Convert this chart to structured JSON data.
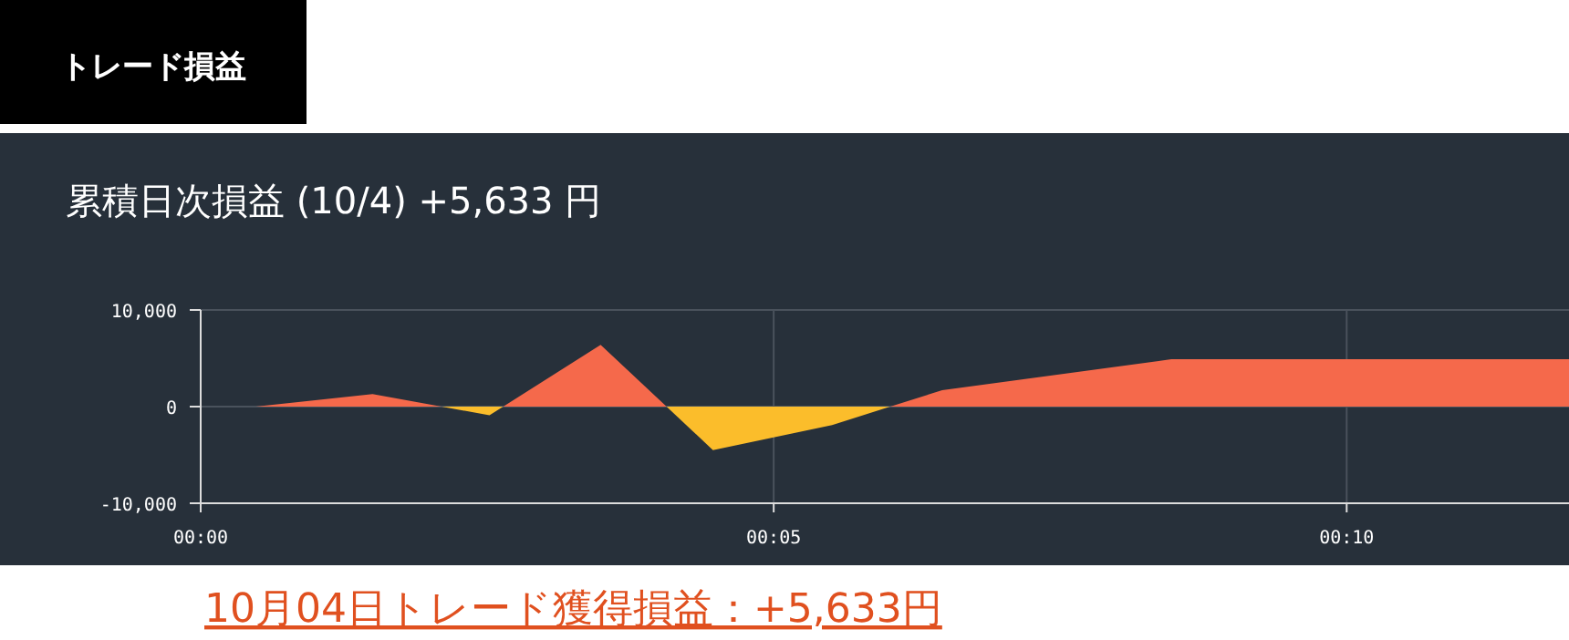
{
  "chart_data": {
    "type": "area",
    "title": "トレード損益",
    "subtitle": "累積日次損益 (10/4) +5,633 円",
    "x": [
      0.48,
      1.5,
      2.52,
      3.49,
      4.47,
      5.51,
      6.47,
      8.47,
      11.94
    ],
    "series": [
      {
        "values": [
          0,
          1300,
          -900,
          6400,
          -4500,
          -1900,
          1700,
          4900,
          4900
        ]
      }
    ],
    "colors": [
      "#f5694b",
      "#fbbd2b"
    ],
    "xlim": [
      0,
      11.94
    ],
    "xticks": [
      {
        "value": 0,
        "label": "00:00"
      },
      {
        "value": 5,
        "label": "00:05"
      },
      {
        "value": 10,
        "label": "00:10"
      }
    ],
    "ylim": [
      -10000,
      10000
    ],
    "yticks": [
      {
        "value": -10000,
        "label": "-10,000"
      },
      {
        "value": 0,
        "label": "0"
      },
      {
        "value": 10000,
        "label": "10,000"
      }
    ],
    "grid": true,
    "annotations": [
      "10月04日トレード獲得損益：+5,633円"
    ]
  }
}
